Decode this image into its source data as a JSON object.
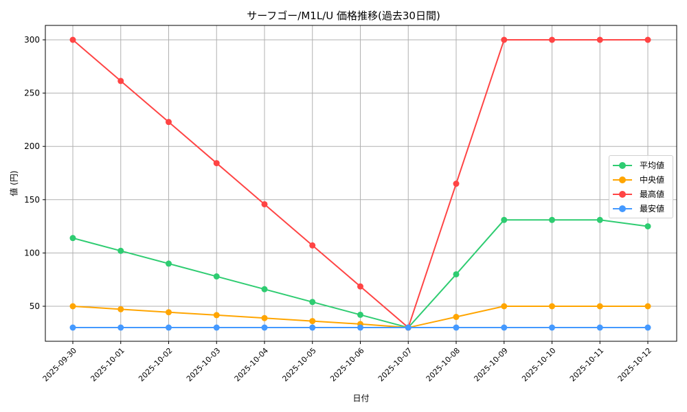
{
  "chart_data": {
    "type": "line",
    "title": "サーフゴー/M1L/U 価格推移(過去30日間)",
    "xlabel": "日付",
    "ylabel": "値 (円)",
    "categories": [
      "2025-09-30",
      "2025-10-01",
      "2025-10-02",
      "2025-10-03",
      "2025-10-04",
      "2025-10-05",
      "2025-10-06",
      "2025-10-07",
      "2025-10-08",
      "2025-10-09",
      "2025-10-10",
      "2025-10-11",
      "2025-10-12"
    ],
    "yticks": [
      50,
      100,
      150,
      200,
      250,
      300
    ],
    "ylim": [
      16,
      313
    ],
    "grid": true,
    "legend_position": "center right",
    "series": [
      {
        "name": "平均値",
        "color": "#2ecc71",
        "values": [
          114,
          102,
          90,
          78,
          66,
          54,
          42,
          30,
          80,
          131,
          131,
          131,
          125
        ]
      },
      {
        "name": "中央値",
        "color": "#ffa500",
        "values": [
          50,
          47.2,
          44.4,
          41.7,
          38.9,
          36.1,
          33.3,
          30,
          40,
          50,
          50,
          50,
          50
        ]
      },
      {
        "name": "最高値",
        "color": "#ff4444",
        "values": [
          300,
          261.4,
          222.9,
          184.3,
          145.7,
          107.1,
          68.6,
          30,
          165,
          300,
          300,
          300,
          300
        ]
      },
      {
        "name": "最安値",
        "color": "#4499ff",
        "values": [
          30,
          30,
          30,
          30,
          30,
          30,
          30,
          30,
          30,
          30,
          30,
          30,
          30
        ]
      }
    ]
  }
}
